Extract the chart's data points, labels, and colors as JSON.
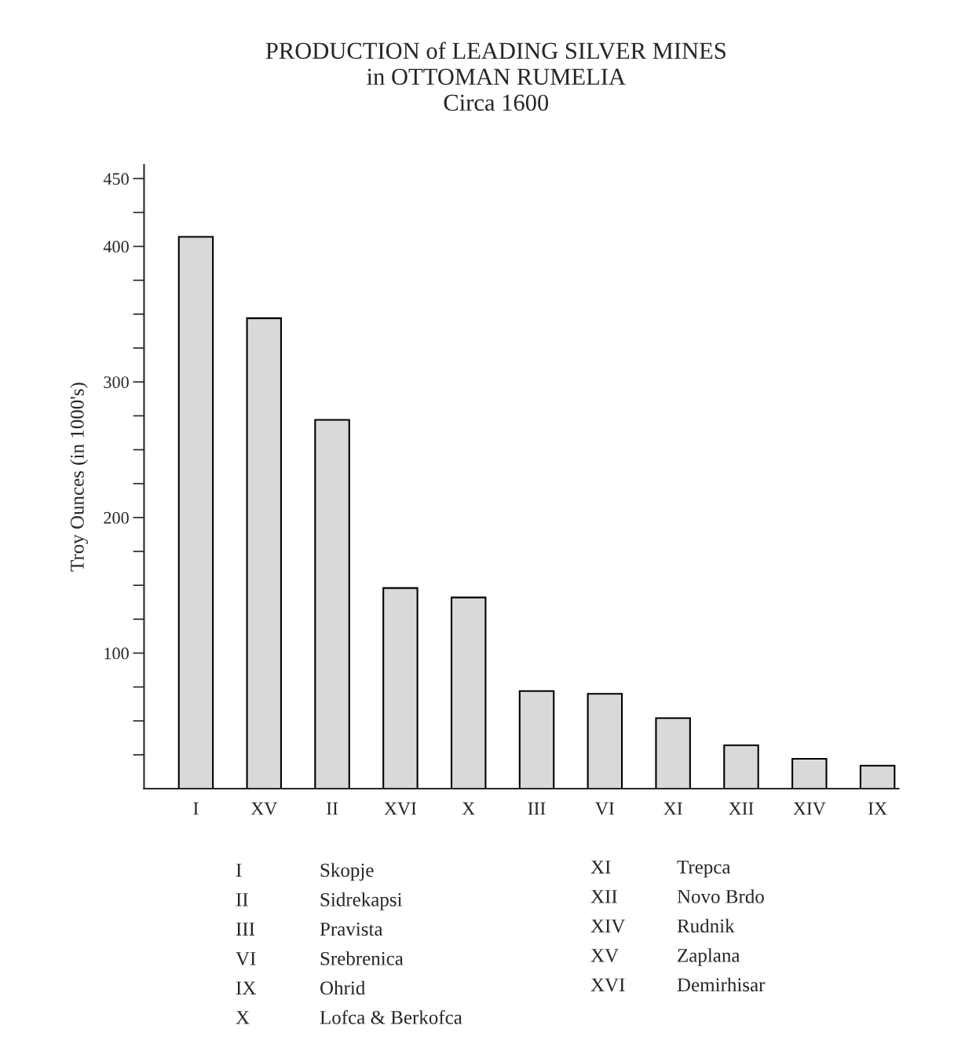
{
  "chart_data": {
    "type": "bar",
    "title": "PRODUCTION of LEADING SILVER MINES\nin OTTOMAN RUMELIA\nCirca 1600",
    "ylabel": "Troy Ounces (in 1000's)",
    "categories": [
      "I",
      "XV",
      "II",
      "XVI",
      "X",
      "III",
      "VI",
      "XI",
      "XII",
      "XIV",
      "IX"
    ],
    "values": [
      407,
      347,
      272,
      148,
      141,
      72,
      70,
      52,
      32,
      22,
      17
    ],
    "color": "#d9d9d9",
    "ylim": [
      0,
      460
    ],
    "yticks": [
      {
        "value": 25,
        "label": null
      },
      {
        "value": 50,
        "label": null
      },
      {
        "value": 75,
        "label": null
      },
      100,
      {
        "value": 125,
        "label": null
      },
      {
        "value": 150,
        "label": null
      },
      {
        "value": 175,
        "label": null
      },
      200,
      {
        "value": 225,
        "label": null
      },
      {
        "value": 250,
        "label": null
      },
      {
        "value": 275,
        "label": null
      },
      300,
      {
        "value": 325,
        "label": null
      },
      {
        "value": 350,
        "label": null
      },
      {
        "value": 375,
        "label": null
      },
      400,
      {
        "value": 425,
        "label": null
      },
      450
    ],
    "grid": false,
    "annotations": [
      "I Skopje",
      "II Sidrekapsi",
      "III Pravista",
      "VI Srebrenica",
      "IX Ohrid",
      "X Lofca & Berkofca",
      "XI Trepca",
      "XII Novo Brdo",
      "XIV Rudnik",
      "XV Zaplana",
      "XVI Demirhisar"
    ]
  }
}
